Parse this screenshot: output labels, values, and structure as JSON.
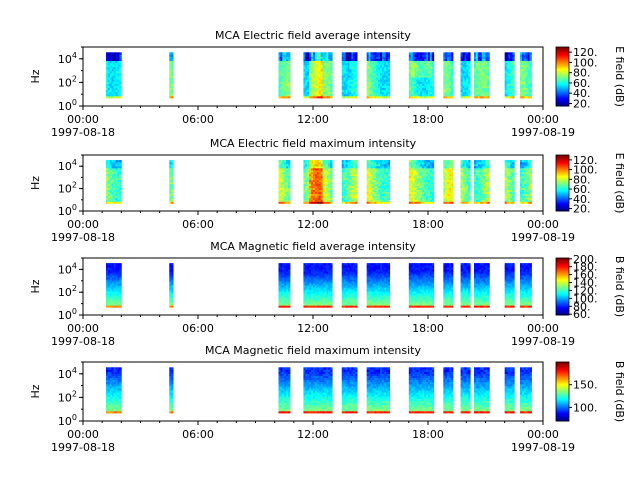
{
  "chart_data": [
    {
      "type": "heatmap",
      "title": "MCA  Electric field average intensity",
      "ylabel": "Hz",
      "yscale": "log",
      "ylim": [
        1,
        100000
      ],
      "y_ticks": [
        {
          "base": "10",
          "exp": "0"
        },
        {
          "base": "10",
          "exp": "2"
        },
        {
          "base": "10",
          "exp": "4"
        }
      ],
      "x_ticks": [
        {
          "time": "00:00",
          "date": "1997-08-18"
        },
        {
          "time": "06:00",
          "date": ""
        },
        {
          "time": "12:00",
          "date": ""
        },
        {
          "time": "18:00",
          "date": ""
        },
        {
          "time": "00:00",
          "date": "1997-08-19"
        }
      ],
      "xlim": [
        "1997-08-18 00:00",
        "1997-08-19 00:00"
      ],
      "colorbar": {
        "label": "E field (dB)",
        "ticks": [
          "20.",
          "40.",
          "60.",
          "80.",
          "100.",
          "120."
        ],
        "range": [
          15,
          130
        ]
      },
      "quantity": "avg",
      "data_segments_hours": [
        [
          1.2,
          2.0
        ],
        [
          4.5,
          4.7
        ],
        [
          10.2,
          10.8
        ],
        [
          11.5,
          13.0
        ],
        [
          13.5,
          14.3
        ],
        [
          14.8,
          16.0
        ],
        [
          17.0,
          18.3
        ],
        [
          18.8,
          19.3
        ],
        [
          19.7,
          20.2
        ],
        [
          20.4,
          21.2
        ],
        [
          22.0,
          22.5
        ],
        [
          22.8,
          23.4
        ]
      ]
    },
    {
      "type": "heatmap",
      "title": "MCA  Electric field maximum intensity",
      "ylabel": "Hz",
      "yscale": "log",
      "ylim": [
        1,
        100000
      ],
      "y_ticks": [
        {
          "base": "10",
          "exp": "0"
        },
        {
          "base": "10",
          "exp": "2"
        },
        {
          "base": "10",
          "exp": "4"
        }
      ],
      "x_ticks": [
        {
          "time": "00:00",
          "date": "1997-08-18"
        },
        {
          "time": "06:00",
          "date": ""
        },
        {
          "time": "12:00",
          "date": ""
        },
        {
          "time": "18:00",
          "date": ""
        },
        {
          "time": "00:00",
          "date": "1997-08-19"
        }
      ],
      "xlim": [
        "1997-08-18 00:00",
        "1997-08-19 00:00"
      ],
      "colorbar": {
        "label": "E field (dB)",
        "ticks": [
          "20.",
          "40.",
          "60.",
          "80.",
          "100.",
          "120."
        ],
        "range": [
          15,
          130
        ]
      },
      "quantity": "max",
      "data_segments_hours": [
        [
          1.2,
          2.0
        ],
        [
          4.5,
          4.7
        ],
        [
          10.2,
          10.8
        ],
        [
          11.5,
          13.0
        ],
        [
          13.5,
          14.3
        ],
        [
          14.8,
          16.0
        ],
        [
          17.0,
          18.3
        ],
        [
          18.8,
          19.3
        ],
        [
          19.7,
          20.2
        ],
        [
          20.4,
          21.2
        ],
        [
          22.0,
          22.5
        ],
        [
          22.8,
          23.4
        ]
      ]
    },
    {
      "type": "heatmap",
      "title": "MCA  Magnetic field average intensity",
      "ylabel": "Hz",
      "yscale": "log",
      "ylim": [
        1,
        100000
      ],
      "y_ticks": [
        {
          "base": "10",
          "exp": "0"
        },
        {
          "base": "10",
          "exp": "2"
        },
        {
          "base": "10",
          "exp": "4"
        }
      ],
      "x_ticks": [
        {
          "time": "00:00",
          "date": "1997-08-18"
        },
        {
          "time": "06:00",
          "date": ""
        },
        {
          "time": "12:00",
          "date": ""
        },
        {
          "time": "18:00",
          "date": ""
        },
        {
          "time": "00:00",
          "date": "1997-08-19"
        }
      ],
      "xlim": [
        "1997-08-18 00:00",
        "1997-08-19 00:00"
      ],
      "colorbar": {
        "label": "B field (dB)",
        "ticks": [
          "60.",
          "80.",
          "100.",
          "120.",
          "140.",
          "160.",
          "180.",
          "200."
        ],
        "range": [
          58,
          202
        ]
      },
      "quantity": "bavg",
      "data_segments_hours": [
        [
          1.2,
          2.0
        ],
        [
          4.5,
          4.7
        ],
        [
          10.2,
          10.8
        ],
        [
          11.5,
          13.0
        ],
        [
          13.5,
          14.3
        ],
        [
          14.8,
          16.0
        ],
        [
          17.0,
          18.3
        ],
        [
          18.8,
          19.3
        ],
        [
          19.7,
          20.2
        ],
        [
          20.4,
          21.2
        ],
        [
          22.0,
          22.5
        ],
        [
          22.8,
          23.4
        ]
      ]
    },
    {
      "type": "heatmap",
      "title": "MCA  Magnetic field maximum intensity",
      "ylabel": "Hz",
      "yscale": "log",
      "ylim": [
        1,
        100000
      ],
      "y_ticks": [
        {
          "base": "10",
          "exp": "0"
        },
        {
          "base": "10",
          "exp": "2"
        },
        {
          "base": "10",
          "exp": "4"
        }
      ],
      "x_ticks": [
        {
          "time": "00:00",
          "date": "1997-08-18"
        },
        {
          "time": "06:00",
          "date": ""
        },
        {
          "time": "12:00",
          "date": ""
        },
        {
          "time": "18:00",
          "date": ""
        },
        {
          "time": "00:00",
          "date": "1997-08-19"
        }
      ],
      "xlim": [
        "1997-08-18 00:00",
        "1997-08-19 00:00"
      ],
      "colorbar": {
        "label": "B field (dB)",
        "ticks": [
          "100.",
          "150."
        ],
        "range": [
          70,
          200
        ]
      },
      "quantity": "bmax",
      "data_segments_hours": [
        [
          1.2,
          2.0
        ],
        [
          4.5,
          4.7
        ],
        [
          10.2,
          10.8
        ],
        [
          11.5,
          13.0
        ],
        [
          13.5,
          14.3
        ],
        [
          14.8,
          16.0
        ],
        [
          17.0,
          18.3
        ],
        [
          18.8,
          19.3
        ],
        [
          19.7,
          20.2
        ],
        [
          20.4,
          21.2
        ],
        [
          22.0,
          22.5
        ],
        [
          22.8,
          23.4
        ]
      ]
    }
  ]
}
